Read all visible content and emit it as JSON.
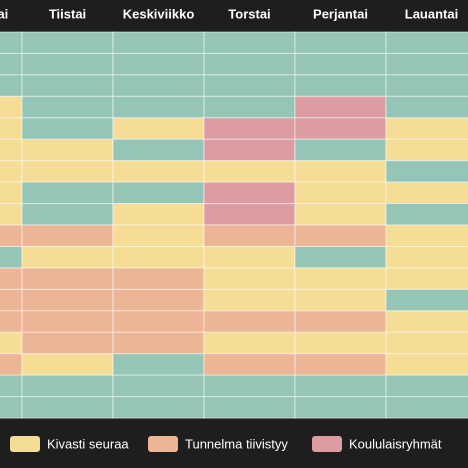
{
  "table": {
    "columns": [
      "Maanantai",
      "Tiistai",
      "Keskiviikko",
      "Torstai",
      "Perjantai",
      "Lauantai"
    ],
    "base_color": "#95c5b6",
    "legend": [
      {
        "name": "Kivasti seuraa",
        "color": "#f5dd95"
      },
      {
        "name": "Tunnelma tiivistyy",
        "color": "#ecb595"
      },
      {
        "name": "Koululaisryhmät",
        "color": "#dd9ca1"
      }
    ],
    "rows": [
      [
        null,
        null,
        null,
        null,
        null,
        null
      ],
      [
        null,
        null,
        null,
        null,
        null,
        null
      ],
      [
        null,
        null,
        null,
        null,
        null,
        null
      ],
      [
        0,
        null,
        null,
        null,
        2,
        null
      ],
      [
        0,
        null,
        0,
        2,
        2,
        0
      ],
      [
        0,
        0,
        null,
        2,
        null,
        0
      ],
      [
        0,
        0,
        0,
        0,
        0,
        null
      ],
      [
        0,
        null,
        null,
        2,
        0,
        0
      ],
      [
        0,
        null,
        0,
        2,
        0,
        null
      ],
      [
        1,
        1,
        0,
        1,
        1,
        0
      ],
      [
        null,
        0,
        0,
        0,
        null,
        0
      ],
      [
        1,
        1,
        1,
        0,
        0,
        0
      ],
      [
        1,
        1,
        1,
        0,
        0,
        null
      ],
      [
        1,
        1,
        1,
        1,
        1,
        0
      ],
      [
        0,
        1,
        1,
        0,
        0,
        0
      ],
      [
        1,
        0,
        null,
        1,
        1,
        0
      ],
      [
        null,
        null,
        null,
        null,
        null,
        null
      ],
      [
        null,
        null,
        null,
        null,
        null,
        null
      ]
    ]
  }
}
